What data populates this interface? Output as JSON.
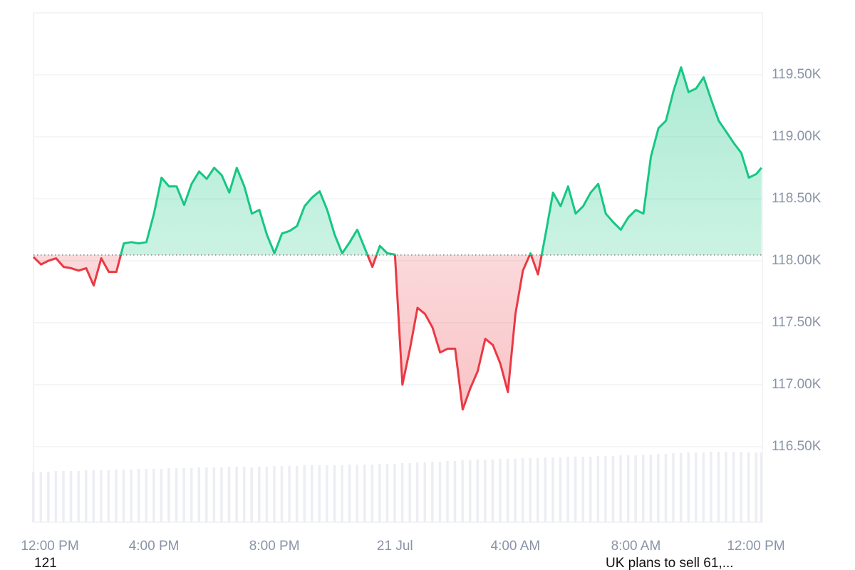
{
  "chart_data": {
    "type": "line",
    "x": [
      0,
      0.25,
      0.5,
      0.75,
      1,
      1.25,
      1.5,
      1.75,
      2,
      2.25,
      2.5,
      2.75,
      3,
      3.25,
      3.5,
      3.75,
      4,
      4.25,
      4.5,
      4.75,
      5,
      5.25,
      5.5,
      5.75,
      6,
      6.25,
      6.5,
      6.75,
      7,
      7.25,
      7.5,
      7.75,
      8,
      8.25,
      8.5,
      8.75,
      9,
      9.25,
      9.5,
      9.75,
      10,
      10.25,
      10.5,
      10.75,
      11,
      11.25,
      11.5,
      11.75,
      12,
      12.25,
      12.5,
      12.75,
      13,
      13.25,
      13.5,
      13.75,
      14,
      14.25,
      14.5,
      14.75,
      15,
      15.25,
      15.5,
      15.75,
      16,
      16.25,
      16.5,
      16.75,
      17,
      17.25,
      17.5,
      17.75,
      18,
      18.25,
      18.5,
      18.75,
      19,
      19.25,
      19.5,
      19.75,
      20,
      20.25,
      20.5,
      20.75,
      21,
      21.25,
      21.5,
      21.75,
      22,
      22.25,
      22.5,
      22.75,
      23,
      23.25,
      23.5,
      23.75,
      24,
      24.17
    ],
    "values": [
      118.03,
      117.97,
      118.0,
      118.02,
      117.95,
      117.94,
      117.92,
      117.94,
      117.8,
      118.02,
      117.91,
      117.91,
      118.14,
      118.15,
      118.14,
      118.15,
      118.38,
      118.67,
      118.6,
      118.6,
      118.45,
      118.62,
      118.72,
      118.66,
      118.75,
      118.69,
      118.55,
      118.75,
      118.6,
      118.38,
      118.41,
      118.21,
      118.06,
      118.22,
      118.24,
      118.28,
      118.44,
      118.51,
      118.56,
      118.41,
      118.21,
      118.06,
      118.15,
      118.25,
      118.1,
      117.95,
      118.12,
      118.06,
      118.05,
      117.0,
      117.29,
      117.62,
      117.57,
      117.46,
      117.26,
      117.29,
      117.29,
      116.8,
      116.97,
      117.11,
      117.37,
      117.32,
      117.17,
      116.94,
      117.57,
      117.92,
      118.06,
      117.89,
      118.21,
      118.55,
      118.44,
      118.6,
      118.38,
      118.44,
      118.55,
      118.62,
      118.38,
      118.31,
      118.25,
      118.35,
      118.41,
      118.38,
      118.84,
      119.07,
      119.13,
      119.37,
      119.56,
      119.36,
      119.39,
      119.48,
      119.3,
      119.13,
      119.04,
      118.95,
      118.87,
      118.67,
      118.7,
      118.75
    ],
    "colors": {
      "above": "#16c784",
      "below": "#ea3943"
    },
    "baseline": 118.046,
    "xlim": [
      0,
      24.2
    ],
    "xticks": [
      {
        "value": 0,
        "label": "12:00 PM"
      },
      {
        "value": 4,
        "label": "4:00 PM"
      },
      {
        "value": 8,
        "label": "8:00 PM"
      },
      {
        "value": 12,
        "label": "21 Jul"
      },
      {
        "value": 16,
        "label": "4:00 AM"
      },
      {
        "value": 20,
        "label": "8:00 AM"
      },
      {
        "value": 24,
        "label": "12:00 PM"
      }
    ],
    "ylim": [
      115.89,
      120.0
    ],
    "yticks": [
      {
        "value": 116.5,
        "label": "116.50K"
      },
      {
        "value": 117,
        "label": "117.00K"
      },
      {
        "value": 117.5,
        "label": "117.50K"
      },
      {
        "value": 118,
        "label": "118.00K"
      },
      {
        "value": 118.5,
        "label": "118.50K"
      },
      {
        "value": 119,
        "label": "119.00K"
      },
      {
        "value": 119.5,
        "label": "119.50K"
      }
    ],
    "grid": true,
    "volume": {
      "color": "#eceef3",
      "lim": [
        0,
        100
      ],
      "values": [
        71,
        71,
        71,
        72,
        72,
        72,
        72,
        73,
        73,
        73,
        73,
        74,
        74,
        74,
        75,
        75,
        75,
        75,
        76,
        76,
        76,
        76,
        77,
        77,
        77,
        77,
        78,
        78,
        78,
        77,
        78,
        78,
        79,
        79,
        79,
        79,
        80,
        80,
        80,
        80,
        80,
        80,
        81,
        81,
        81,
        81,
        82,
        82,
        82,
        83,
        83,
        84,
        84,
        85,
        85,
        86,
        86,
        87,
        87,
        88,
        88,
        88,
        89,
        89,
        89,
        90,
        90,
        90,
        91,
        91,
        91,
        92,
        92,
        92,
        92,
        93,
        93,
        93,
        94,
        94,
        94,
        95,
        95,
        96,
        96,
        97,
        97,
        98,
        98,
        98,
        99,
        99,
        99,
        99,
        99,
        98,
        98,
        98
      ]
    },
    "annotations": [
      "121",
      "UK plans to sell 61,..."
    ]
  }
}
